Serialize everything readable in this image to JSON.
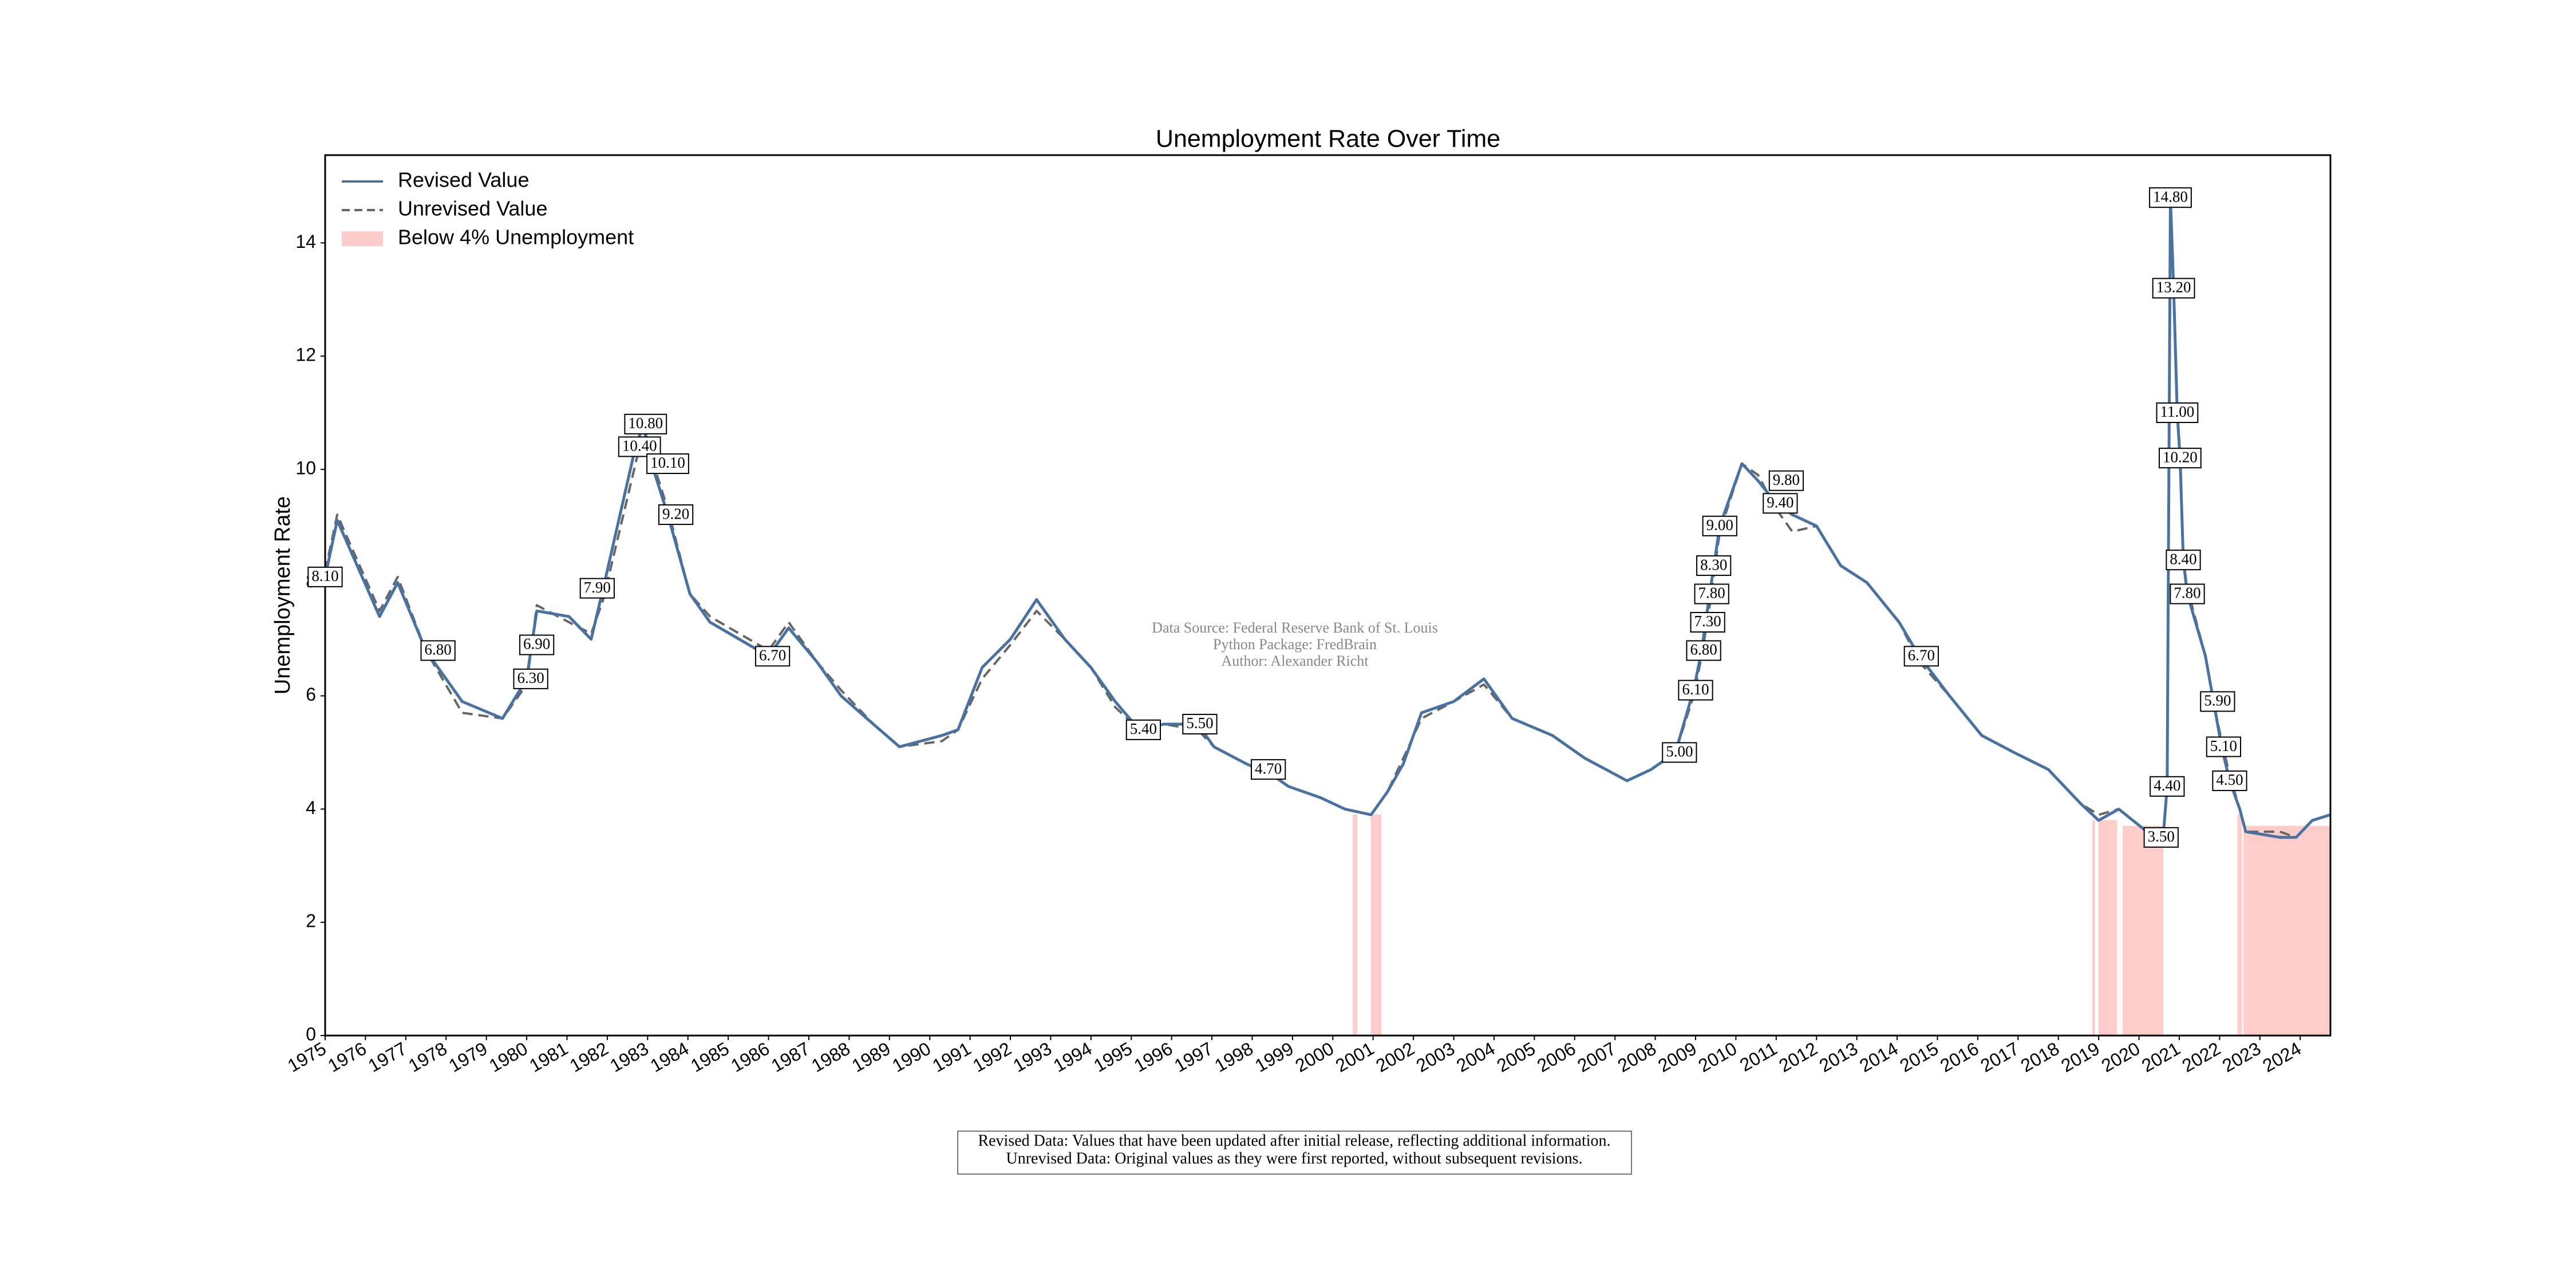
{
  "chart_data": {
    "type": "line",
    "title": "Unemployment Rate Over Time",
    "y_label": "Unemployment Rate",
    "xlim": [
      1975,
      2024.75
    ],
    "xticks": [
      1975,
      1976,
      1977,
      1978,
      1979,
      1980,
      1981,
      1982,
      1983,
      1984,
      1985,
      1986,
      1987,
      1988,
      1989,
      1990,
      1991,
      1992,
      1993,
      1994,
      1995,
      1996,
      1997,
      1998,
      1999,
      2000,
      2001,
      2002,
      2003,
      2004,
      2005,
      2006,
      2007,
      2008,
      2009,
      2010,
      2011,
      2012,
      2013,
      2014,
      2015,
      2016,
      2017,
      2018,
      2019,
      2020,
      2021,
      2022,
      2023,
      2024
    ],
    "ylim": [
      0,
      15.55
    ],
    "yticks": [
      0,
      2,
      4,
      6,
      8,
      10,
      12,
      14
    ],
    "legend": "upper left",
    "x": [
      1975.0,
      1975.3,
      1976.35,
      1976.8,
      1977.5,
      1978.4,
      1979.4,
      1980.0,
      1980.25,
      1981.05,
      1981.6,
      1981.9,
      1982.7,
      1982.9,
      1983.1,
      1983.5,
      1984.05,
      1984.55,
      1986.0,
      1986.5,
      1987.2,
      1987.8,
      1988.6,
      1989.25,
      1990.3,
      1990.7,
      1991.3,
      1992.0,
      1992.65,
      1993.35,
      1994.0,
      1994.6,
      1995.2,
      1995.8,
      1996.65,
      1997.05,
      1997.85,
      1998.5,
      1998.9,
      1999.7,
      2000.3,
      2000.95,
      2001.35,
      2001.75,
      2002.2,
      2003.0,
      2003.75,
      2004.45,
      2005.45,
      2006.25,
      2007.3,
      2007.9,
      2008.5,
      2008.95,
      2009.15,
      2009.35,
      2009.6,
      2010.15,
      2010.55,
      2011.0,
      2011.4,
      2012.0,
      2012.6,
      2013.25,
      2014.05,
      2014.55,
      2015.3,
      2016.1,
      2016.9,
      2017.75,
      2018.55,
      2019.0,
      2019.5,
      2020.2,
      2020.6,
      2020.7,
      2020.78,
      2020.86,
      2020.95,
      2021.02,
      2021.1,
      2021.2,
      2021.65,
      2021.85,
      2022.05,
      2022.25,
      2022.5,
      2022.65,
      2023.5,
      2023.9,
      2024.3,
      2024.75
    ],
    "series": [
      {
        "name": "Unrevised Value",
        "color": "#666666",
        "dash": true,
        "values": [
          8.2,
          9.2,
          7.5,
          8.1,
          6.8,
          5.7,
          5.6,
          6.2,
          7.6,
          7.3,
          7.1,
          7.7,
          10.1,
          10.7,
          10.2,
          9.3,
          7.8,
          7.4,
          6.8,
          7.3,
          6.6,
          6.1,
          5.5,
          5.1,
          5.2,
          5.4,
          6.3,
          6.9,
          7.5,
          7.0,
          6.5,
          5.8,
          5.4,
          5.5,
          5.4,
          5.1,
          4.8,
          4.6,
          4.4,
          4.2,
          4.0,
          3.9,
          4.3,
          4.9,
          5.6,
          5.9,
          6.2,
          5.6,
          5.3,
          4.9,
          4.5,
          4.7,
          5.0,
          6.0,
          6.7,
          7.6,
          8.9,
          10.1,
          9.9,
          9.3,
          8.9,
          9.0,
          8.3,
          8.0,
          7.3,
          6.6,
          6.0,
          5.3,
          5.0,
          4.7,
          4.1,
          3.9,
          4.0,
          3.6,
          3.5,
          4.4,
          14.7,
          13.3,
          11.1,
          10.2,
          8.4,
          7.9,
          6.7,
          5.9,
          5.2,
          4.6,
          4.0,
          3.6,
          3.6,
          3.5,
          3.8,
          3.9
        ]
      },
      {
        "name": "Revised Value",
        "color": "#4a72a0",
        "dash": false,
        "values": [
          8.1,
          9.1,
          7.4,
          8.0,
          6.8,
          5.9,
          5.6,
          6.3,
          7.5,
          7.4,
          7.0,
          7.9,
          10.4,
          10.8,
          10.1,
          9.2,
          7.8,
          7.3,
          6.7,
          7.2,
          6.6,
          6.0,
          5.5,
          5.1,
          5.3,
          5.4,
          6.5,
          7.0,
          7.7,
          7.0,
          6.5,
          5.9,
          5.4,
          5.5,
          5.5,
          5.1,
          4.8,
          4.6,
          4.4,
          4.2,
          4.0,
          3.9,
          4.3,
          4.8,
          5.7,
          5.9,
          6.3,
          5.6,
          5.3,
          4.9,
          4.5,
          4.7,
          5.0,
          6.1,
          6.8,
          7.8,
          9.0,
          10.1,
          9.8,
          9.4,
          9.2,
          9.0,
          8.3,
          8.0,
          7.3,
          6.7,
          6.0,
          5.3,
          5.0,
          4.7,
          4.1,
          3.8,
          4.0,
          3.6,
          3.5,
          4.4,
          14.8,
          13.2,
          11.0,
          10.2,
          8.4,
          7.8,
          6.7,
          5.9,
          5.1,
          4.5,
          4.0,
          3.6,
          3.5,
          3.5,
          3.8,
          3.9
        ]
      }
    ],
    "fill": {
      "name": "Below 4% Unemployment",
      "color": "#ffcccc",
      "regions": [
        {
          "start": 2000.5,
          "end": 2000.6,
          "top": 3.9
        },
        {
          "start": 2000.95,
          "end": 2001.2,
          "top": 3.9
        },
        {
          "start": 2018.85,
          "end": 2018.9,
          "top": 3.8
        },
        {
          "start": 2019.0,
          "end": 2019.45,
          "top": 3.8
        },
        {
          "start": 2019.6,
          "end": 2020.6,
          "top": 3.7
        },
        {
          "start": 2022.45,
          "end": 2022.55,
          "top": 3.9
        },
        {
          "start": 2022.6,
          "end": 2024.75,
          "top": 3.7
        }
      ]
    },
    "annotations": [
      {
        "x": 1975.0,
        "value": 8.1,
        "label": "8.10"
      },
      {
        "x": 1977.8,
        "value": 6.8,
        "label": "6.80"
      },
      {
        "x": 1980.25,
        "value": 6.9,
        "label": "6.90"
      },
      {
        "x": 1980.1,
        "value": 6.3,
        "label": "6.30"
      },
      {
        "x": 1981.75,
        "value": 7.9,
        "label": "7.90"
      },
      {
        "x": 1982.8,
        "value": 10.4,
        "label": "10.40"
      },
      {
        "x": 1982.95,
        "value": 10.8,
        "label": "10.80"
      },
      {
        "x": 1983.5,
        "value": 10.1,
        "label": "10.10"
      },
      {
        "x": 1983.7,
        "value": 9.2,
        "label": "9.20"
      },
      {
        "x": 1986.1,
        "value": 6.7,
        "label": "6.70"
      },
      {
        "x": 1995.3,
        "value": 5.4,
        "label": "5.40"
      },
      {
        "x": 1996.7,
        "value": 5.5,
        "label": "5.50"
      },
      {
        "x": 1998.4,
        "value": 4.7,
        "label": "4.70"
      },
      {
        "x": 2008.6,
        "value": 5.0,
        "label": "5.00"
      },
      {
        "x": 2009.0,
        "value": 6.1,
        "label": "6.10"
      },
      {
        "x": 2009.2,
        "value": 6.8,
        "label": "6.80"
      },
      {
        "x": 2009.3,
        "value": 7.3,
        "label": "7.30"
      },
      {
        "x": 2009.4,
        "value": 7.8,
        "label": "7.80"
      },
      {
        "x": 2009.45,
        "value": 8.3,
        "label": "8.30"
      },
      {
        "x": 2009.6,
        "value": 9.0,
        "label": "9.00"
      },
      {
        "x": 2011.25,
        "value": 9.8,
        "label": "9.80"
      },
      {
        "x": 2011.1,
        "value": 9.4,
        "label": "9.40"
      },
      {
        "x": 2014.6,
        "value": 6.7,
        "label": "6.70"
      },
      {
        "x": 2020.7,
        "value": 4.4,
        "label": "4.40"
      },
      {
        "x": 2020.55,
        "value": 3.5,
        "label": "3.50"
      },
      {
        "x": 2020.78,
        "value": 14.8,
        "label": "14.80"
      },
      {
        "x": 2020.86,
        "value": 13.2,
        "label": "13.20"
      },
      {
        "x": 2020.95,
        "value": 11.0,
        "label": "11.00"
      },
      {
        "x": 2021.02,
        "value": 10.2,
        "label": "10.20"
      },
      {
        "x": 2021.1,
        "value": 8.4,
        "label": "8.40"
      },
      {
        "x": 2021.2,
        "value": 7.8,
        "label": "7.80"
      },
      {
        "x": 2021.95,
        "value": 5.9,
        "label": "5.90"
      },
      {
        "x": 2022.1,
        "value": 5.1,
        "label": "5.10"
      },
      {
        "x": 2022.25,
        "value": 4.5,
        "label": "4.50"
      }
    ],
    "source_lines": [
      "Data Source: Federal Reserve Bank of St. Louis",
      "Python Package: FredBrain",
      "Author: Alexander Richt"
    ],
    "footnote_lines": [
      "Revised Data: Values that have been updated after initial release, reflecting additional information.",
      "Unrevised Data: Original values as they were first reported, without subsequent revisions."
    ]
  }
}
